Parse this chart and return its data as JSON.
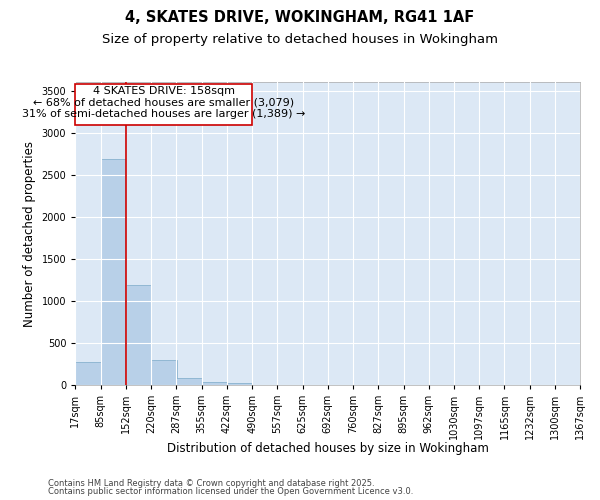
{
  "title": "4, SKATES DRIVE, WOKINGHAM, RG41 1AF",
  "subtitle": "Size of property relative to detached houses in Wokingham",
  "xlabel": "Distribution of detached houses by size in Wokingham",
  "ylabel": "Number of detached properties",
  "property_label": "4 SKATES DRIVE: 158sqm",
  "annotation_line1": "← 68% of detached houses are smaller (3,079)",
  "annotation_line2": "31% of semi-detached houses are larger (1,389) →",
  "footer_line1": "Contains HM Land Registry data © Crown copyright and database right 2025.",
  "footer_line2": "Contains public sector information licensed under the Open Government Licence v3.0.",
  "bin_labels": [
    "17sqm",
    "85sqm",
    "152sqm",
    "220sqm",
    "287sqm",
    "355sqm",
    "422sqm",
    "490sqm",
    "557sqm",
    "625sqm",
    "692sqm",
    "760sqm",
    "827sqm",
    "895sqm",
    "962sqm",
    "1030sqm",
    "1097sqm",
    "1165sqm",
    "1232sqm",
    "1300sqm",
    "1367sqm"
  ],
  "bin_edges": [
    17,
    85,
    152,
    220,
    287,
    355,
    422,
    490,
    557,
    625,
    692,
    760,
    827,
    895,
    962,
    1030,
    1097,
    1165,
    1232,
    1300,
    1367
  ],
  "bar_heights": [
    270,
    2690,
    1185,
    295,
    80,
    38,
    18,
    0,
    0,
    0,
    0,
    0,
    0,
    0,
    0,
    0,
    0,
    0,
    0,
    0
  ],
  "bar_color": "#b8d0e8",
  "bar_edge_color": "#7aaac8",
  "vline_color": "#cc0000",
  "vline_x": 152,
  "ylim": [
    0,
    3600
  ],
  "yticks": [
    0,
    500,
    1000,
    1500,
    2000,
    2500,
    3000,
    3500
  ],
  "plot_bg_color": "#dce8f5",
  "fig_bg_color": "#ffffff",
  "grid_color": "#ffffff",
  "box_edge_color": "#cc0000",
  "box_face_color": "#ffffff",
  "title_fontsize": 10.5,
  "subtitle_fontsize": 9.5,
  "axis_label_fontsize": 8.5,
  "tick_fontsize": 7,
  "footer_fontsize": 6,
  "annotation_fontsize": 8
}
